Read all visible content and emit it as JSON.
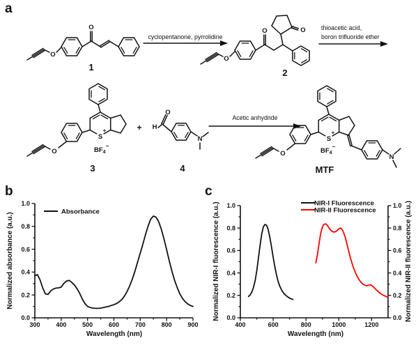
{
  "panels": {
    "a": "a",
    "b": "b",
    "c": "c"
  },
  "scheme": {
    "step1_reagent": "cyclopentanone, pyrrolidine",
    "step2_reagent_line1": "thioacetic acid,",
    "step2_reagent_line2": "boron trifluoride ether",
    "step3_reagent": "Acetic anhydride",
    "compound1_label": "1",
    "compound2_label": "2",
    "compound3_label": "3",
    "compound4_label": "4",
    "product_label": "MTF",
    "plus_sign": "+",
    "atom_oxygen": "O",
    "atom_sulfur": "S",
    "atom_nitrogen": "N",
    "atom_hydrogen": "H",
    "sulfur_charge": "+",
    "counterion_main": "BF",
    "counterion_subscript": "4",
    "counterion_charge": "−"
  },
  "chart_data": [
    {
      "type": "line",
      "xlabel": "Wavelength (nm)",
      "ylabel": "Normalized absorbance (a.u.)",
      "xlim": [
        300,
        900
      ],
      "ylim": [
        0.0,
        1.0
      ],
      "xticks": [
        300,
        400,
        500,
        600,
        700,
        800,
        900
      ],
      "xticklabels": [
        "300",
        "400",
        "500",
        "600",
        "700",
        "800",
        "900"
      ],
      "xminorticks": [
        350,
        450,
        550,
        650,
        750,
        850
      ],
      "yticks": [
        0.0,
        0.2,
        0.4,
        0.6,
        0.8,
        1.0
      ],
      "yticklabels": [
        "0.0",
        "0.2",
        "0.4",
        "0.6",
        "0.8",
        "1.0"
      ],
      "yminorticks": [
        0.1,
        0.3,
        0.5,
        0.7,
        0.9
      ],
      "grid": false,
      "legend_position": "upper-left",
      "series": [
        {
          "name": "Absorbance",
          "color": "#111111",
          "x": [
            300,
            310,
            320,
            330,
            340,
            350,
            360,
            370,
            380,
            390,
            400,
            410,
            420,
            430,
            440,
            450,
            460,
            470,
            480,
            490,
            500,
            510,
            520,
            530,
            540,
            550,
            560,
            570,
            580,
            590,
            600,
            610,
            620,
            630,
            640,
            650,
            660,
            670,
            680,
            690,
            700,
            710,
            720,
            730,
            740,
            750,
            760,
            770,
            780,
            790,
            800,
            810,
            820,
            830,
            840,
            850,
            860,
            870,
            880,
            890,
            900
          ],
          "y": [
            0.368,
            0.378,
            0.33,
            0.26,
            0.21,
            0.205,
            0.235,
            0.252,
            0.26,
            0.262,
            0.268,
            0.3,
            0.322,
            0.328,
            0.31,
            0.288,
            0.255,
            0.215,
            0.165,
            0.125,
            0.1,
            0.09,
            0.085,
            0.083,
            0.083,
            0.085,
            0.09,
            0.095,
            0.1,
            0.108,
            0.115,
            0.125,
            0.14,
            0.16,
            0.19,
            0.23,
            0.28,
            0.34,
            0.41,
            0.49,
            0.565,
            0.645,
            0.73,
            0.805,
            0.865,
            0.89,
            0.88,
            0.84,
            0.775,
            0.69,
            0.595,
            0.5,
            0.41,
            0.33,
            0.265,
            0.21,
            0.17,
            0.142,
            0.122,
            0.108,
            0.1
          ]
        }
      ]
    },
    {
      "type": "line",
      "xlabel": "Wavelength (nm)",
      "ylabel_left": "Normalized NIR-I fluorescence (a.u.)",
      "ylabel_right": "Normalized NIR-II fluorescence (a.u.)",
      "ylabel_right_color": "#ff0000",
      "xlim": [
        400,
        1300
      ],
      "ylim": [
        0.0,
        1.0
      ],
      "xticks": [
        400,
        600,
        800,
        1000,
        1200
      ],
      "xticklabels": [
        "400",
        "600",
        "800",
        "1000",
        "1200"
      ],
      "xminorticks": [
        500,
        700,
        900,
        1100
      ],
      "yticks": [
        0.0,
        0.2,
        0.4,
        0.6,
        0.8,
        1.0
      ],
      "yticklabels": [
        "0.0",
        "0.2",
        "0.4",
        "0.6",
        "0.8",
        "1.0"
      ],
      "yminorticks": [
        0.1,
        0.3,
        0.5,
        0.7,
        0.9
      ],
      "grid": false,
      "legend_position": "upper-right",
      "series": [
        {
          "name": "NIR-I Fluorescence",
          "color": "#111111",
          "axis": "left",
          "x": [
            450,
            460,
            470,
            480,
            490,
            500,
            510,
            520,
            530,
            540,
            550,
            560,
            570,
            580,
            590,
            600,
            610,
            620,
            630,
            640,
            650,
            660,
            670,
            680,
            690,
            700,
            710,
            720
          ],
          "y": [
            0.19,
            0.205,
            0.23,
            0.27,
            0.33,
            0.42,
            0.53,
            0.645,
            0.745,
            0.81,
            0.832,
            0.825,
            0.785,
            0.715,
            0.63,
            0.54,
            0.455,
            0.385,
            0.325,
            0.283,
            0.252,
            0.228,
            0.21,
            0.196,
            0.185,
            0.176,
            0.169,
            0.164
          ]
        },
        {
          "name": "NIR-II Fluorescence",
          "color": "#ff0000",
          "axis": "right",
          "x": [
            860,
            870,
            880,
            890,
            900,
            910,
            920,
            930,
            940,
            950,
            960,
            970,
            980,
            990,
            1000,
            1010,
            1020,
            1030,
            1040,
            1050,
            1060,
            1070,
            1080,
            1090,
            1100,
            1110,
            1120,
            1130,
            1140,
            1150,
            1160,
            1170,
            1180,
            1190,
            1200,
            1210,
            1220,
            1230,
            1240,
            1250,
            1260,
            1270,
            1280,
            1290,
            1300
          ],
          "y": [
            0.49,
            0.565,
            0.665,
            0.755,
            0.81,
            0.833,
            0.838,
            0.825,
            0.8,
            0.782,
            0.77,
            0.764,
            0.768,
            0.778,
            0.792,
            0.8,
            0.788,
            0.758,
            0.712,
            0.655,
            0.595,
            0.538,
            0.488,
            0.445,
            0.408,
            0.375,
            0.348,
            0.326,
            0.31,
            0.298,
            0.29,
            0.286,
            0.289,
            0.294,
            0.29,
            0.277,
            0.262,
            0.247,
            0.233,
            0.221,
            0.211,
            0.202,
            0.195,
            0.189,
            0.184
          ]
        }
      ]
    }
  ]
}
